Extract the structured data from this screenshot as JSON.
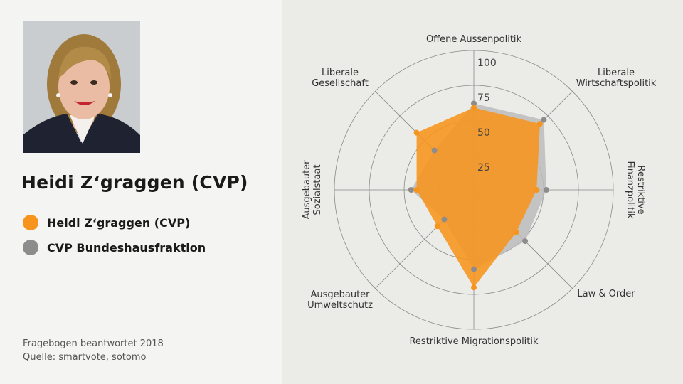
{
  "person": {
    "name": "Heidi Z‘graggen (CVP)"
  },
  "legend": [
    {
      "label": "Heidi Z‘graggen (CVP)",
      "color": "#f7941d"
    },
    {
      "label": "CVP Bundeshausfraktion",
      "color": "#8c8c8c"
    }
  ],
  "footnote": {
    "line1": "Fragebogen beantwortet 2018",
    "line2": "Quelle: smartvote, sotomo"
  },
  "chart_data": {
    "type": "radar",
    "axes": [
      [
        "Offene Aussenpolitik"
      ],
      [
        "Liberale",
        "Wirtschaftspolitik"
      ],
      [
        "Restriktive",
        "Finanzpolitik"
      ],
      [
        "Law & Order"
      ],
      [
        "Restriktive Migrationspolitik"
      ],
      [
        "Ausgebauter",
        "Umweltschutz"
      ],
      [
        "Ausgebauter",
        "Sozialstaat"
      ],
      [
        "Liberale",
        "Gesellschaft"
      ]
    ],
    "rlim": [
      0,
      100
    ],
    "ticks": [
      25,
      50,
      75,
      100
    ],
    "grid": true,
    "series": [
      {
        "name": "CVP Bundeshausfraktion",
        "color": "#8c8c8c",
        "fill": "#bcbcbc",
        "values": [
          62,
          71,
          52,
          52,
          57,
          30,
          45,
          40
        ]
      },
      {
        "name": "Heidi Z‘graggen (CVP)",
        "color": "#f7941d",
        "fill": "#f7941d",
        "values": [
          59,
          67,
          45,
          43,
          70,
          37,
          41,
          58
        ]
      }
    ]
  }
}
